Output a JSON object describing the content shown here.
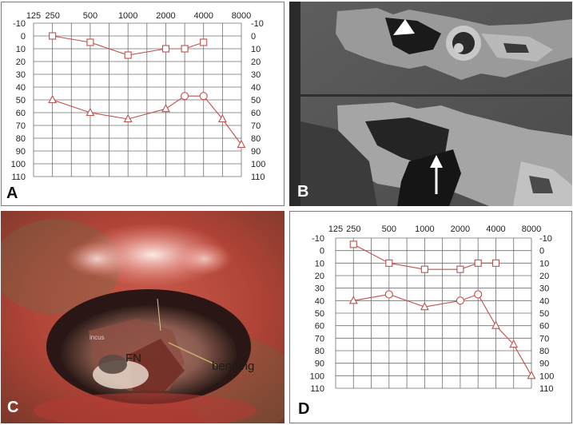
{
  "panels": {
    "a": {
      "label": "A"
    },
    "b": {
      "label": "B"
    },
    "c": {
      "label": "C",
      "annotations": {
        "incus": "incus",
        "fn": "FN",
        "bending": "bending"
      }
    },
    "d": {
      "label": "D"
    }
  },
  "colors": {
    "trace": "#c0504d",
    "grid": "#6f6f6f",
    "text": "#222222",
    "white": "#ffffff"
  },
  "chart_data": [
    {
      "panel": "A",
      "type": "line",
      "x_tick_labels": [
        "125",
        "250",
        "500",
        "1000",
        "2000",
        "4000",
        "8000"
      ],
      "y_tick_labels": [
        "-10",
        "0",
        "10",
        "20",
        "30",
        "40",
        "50",
        "60",
        "70",
        "80",
        "90",
        "100",
        "110"
      ],
      "ylim": [
        -10,
        110
      ],
      "y_inverted": true,
      "grid": true,
      "series": [
        {
          "marker": "square",
          "points": [
            [
              250,
              0
            ],
            [
              500,
              5
            ],
            [
              1000,
              15
            ],
            [
              2000,
              10
            ],
            [
              3000,
              10
            ],
            [
              4000,
              5
            ]
          ]
        },
        {
          "marker": "triangle-circle",
          "points": [
            [
              250,
              50
            ],
            [
              500,
              60
            ],
            [
              1000,
              65
            ],
            [
              2000,
              57
            ],
            [
              3000,
              47
            ],
            [
              4000,
              47
            ],
            [
              6000,
              65
            ],
            [
              8000,
              85
            ]
          ],
          "markers": [
            "triangle",
            "triangle",
            "triangle",
            "triangle",
            "circle",
            "circle",
            "triangle",
            "triangle"
          ]
        }
      ]
    },
    {
      "panel": "D",
      "type": "line",
      "x_tick_labels": [
        "125",
        "250",
        "500",
        "1000",
        "2000",
        "4000",
        "8000"
      ],
      "y_tick_labels": [
        "-10",
        "0",
        "10",
        "20",
        "30",
        "40",
        "50",
        "60",
        "70",
        "80",
        "90",
        "100",
        "110"
      ],
      "ylim": [
        -10,
        110
      ],
      "y_inverted": true,
      "grid": true,
      "series": [
        {
          "marker": "square",
          "points": [
            [
              250,
              -5
            ],
            [
              500,
              10
            ],
            [
              1000,
              15
            ],
            [
              2000,
              15
            ],
            [
              3000,
              10
            ],
            [
              4000,
              10
            ]
          ]
        },
        {
          "marker": "triangle-circle",
          "points": [
            [
              250,
              40
            ],
            [
              500,
              35
            ],
            [
              1000,
              45
            ],
            [
              2000,
              40
            ],
            [
              3000,
              35
            ],
            [
              4000,
              60
            ],
            [
              6000,
              75
            ],
            [
              8000,
              100
            ]
          ],
          "markers": [
            "triangle",
            "circle",
            "triangle",
            "circle",
            "circle",
            "triangle",
            "triangle",
            "triangle"
          ]
        }
      ]
    }
  ]
}
